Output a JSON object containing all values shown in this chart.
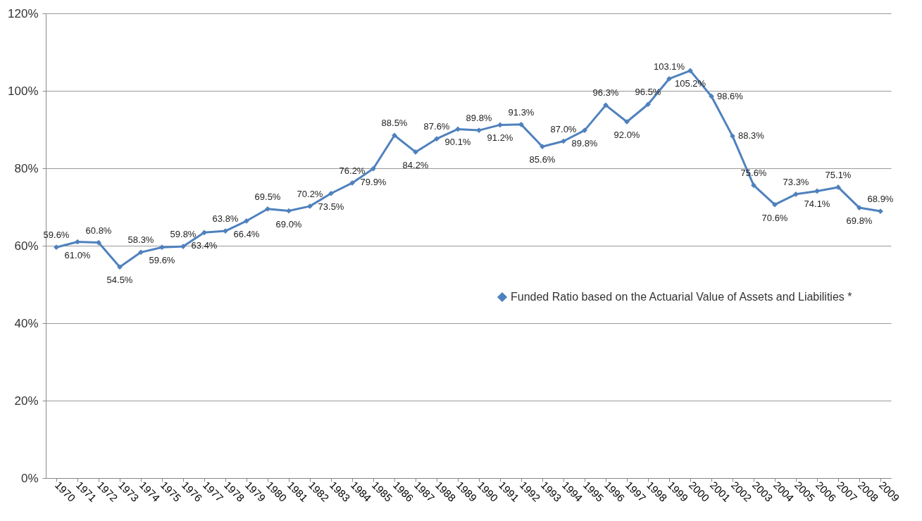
{
  "chart_data": {
    "type": "line",
    "categories": [
      "1970",
      "1971",
      "1972",
      "1973",
      "1974",
      "1975",
      "1976",
      "1977",
      "1978",
      "1979",
      "1980",
      "1981",
      "1982",
      "1983",
      "1984",
      "1985",
      "1986",
      "1987",
      "1988",
      "1989",
      "1990",
      "1991",
      "1992",
      "1993",
      "1994",
      "1995",
      "1996",
      "1997",
      "1998",
      "1999",
      "2000",
      "2001",
      "2002",
      "2003",
      "2004",
      "2005",
      "2006",
      "2007",
      "2008",
      "2009"
    ],
    "series": [
      {
        "name": "Funded Ratio based on the Actuarial Value of Assets and Liabilities *",
        "color": "#4f81bd",
        "values": [
          59.6,
          61.0,
          60.8,
          54.5,
          58.3,
          59.6,
          59.8,
          63.4,
          63.8,
          66.4,
          69.5,
          69.0,
          70.2,
          73.5,
          76.2,
          79.9,
          88.5,
          84.2,
          87.6,
          90.1,
          89.8,
          91.2,
          91.3,
          85.6,
          87.0,
          89.8,
          96.3,
          92.0,
          96.5,
          103.1,
          105.2,
          98.6,
          88.3,
          75.6,
          70.6,
          73.3,
          74.1,
          75.1,
          69.8,
          68.9
        ],
        "value_labels": [
          "59.6%",
          "61.0%",
          "60.8%",
          "54.5%",
          "58.3%",
          "59.6%",
          "59.8%",
          "63.4%",
          "63.8%",
          "66.4%",
          "69.5%",
          "69.0%",
          "70.2%",
          "73.5%",
          "76.2%",
          "79.9%",
          "88.5%",
          "84.2%",
          "87.6%",
          "90.1%",
          "89.8%",
          "91.2%",
          "91.3%",
          "85.6%",
          "87.0%",
          "89.8%",
          "96.3%",
          "92.0%",
          "96.5%",
          "103.1%",
          "105.2%",
          "98.6%",
          "88.3%",
          "75.6%",
          "70.6%",
          "73.3%",
          "74.1%",
          "75.1%",
          "69.8%",
          "68.9%"
        ]
      }
    ],
    "ylim": [
      0,
      120
    ],
    "yticks": [
      {
        "value": 0,
        "label": "0%"
      },
      {
        "value": 20,
        "label": "20%"
      },
      {
        "value": 40,
        "label": "40%"
      },
      {
        "value": 60,
        "label": "60%"
      },
      {
        "value": 80,
        "label": "80%"
      },
      {
        "value": 100,
        "label": "100%"
      },
      {
        "value": 120,
        "label": "120%"
      }
    ],
    "grid": "y",
    "legend": "right",
    "marker": "diamond",
    "line_style": "solid"
  }
}
